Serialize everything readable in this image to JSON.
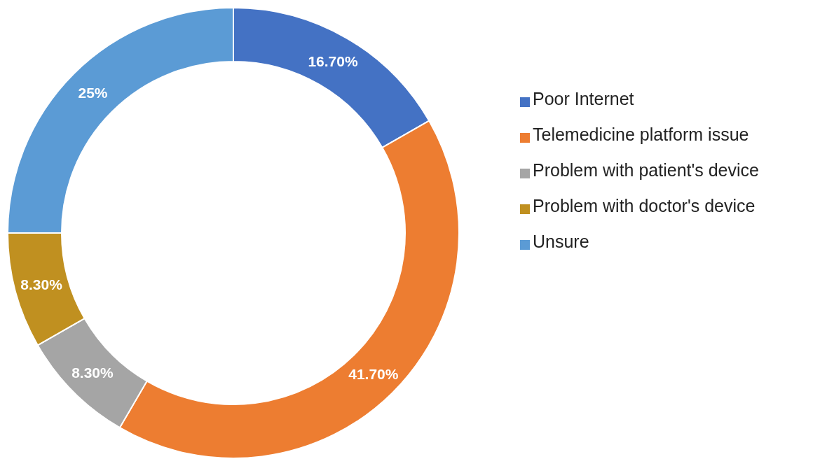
{
  "chart_data": {
    "type": "donut",
    "categories": [
      "Poor Internet",
      "Telemedicine platform issue",
      "Problem with patient's device",
      "Problem with doctor's device",
      "Unsure"
    ],
    "values": [
      16.7,
      41.7,
      8.3,
      8.3,
      25
    ],
    "value_labels": [
      "16.70%",
      "41.70%",
      "8.30%",
      "8.30%",
      "25%"
    ],
    "colors": [
      "#4472c4",
      "#ed7d31",
      "#a5a5a5",
      "#c09020",
      "#5b9bd5"
    ],
    "legend": "right"
  }
}
